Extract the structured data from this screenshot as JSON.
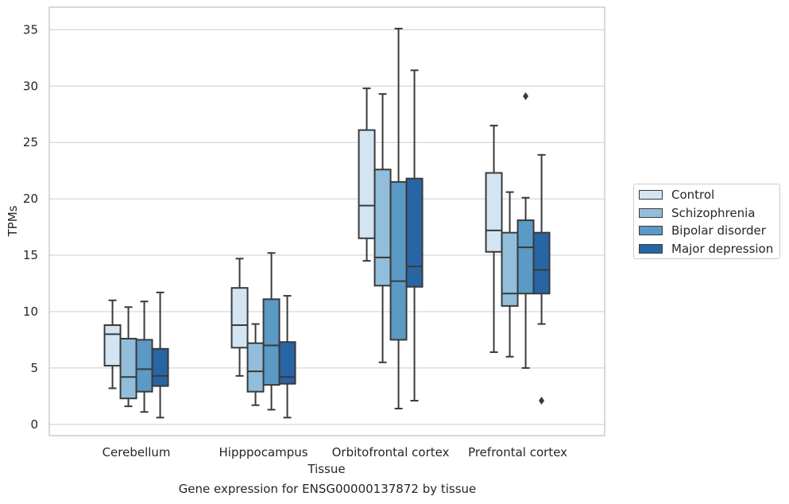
{
  "chart_data": {
    "type": "box",
    "title": "",
    "caption": "Gene expression for ENSG00000137872 by tissue",
    "xlabel": "Tissue",
    "ylabel": "TPMs",
    "ylim": [
      -1,
      37
    ],
    "yticks": [
      0,
      5,
      10,
      15,
      20,
      25,
      30,
      35
    ],
    "grid": "horizontal",
    "legend_position": "right",
    "categories": [
      "Cerebellum",
      "Hipppocampus",
      "Orbitofrontal cortex",
      "Prefrontal cortex"
    ],
    "series": [
      {
        "name": "Control",
        "color": "#d3e4f3",
        "boxes": [
          {
            "whislo": 3.2,
            "q1": 5.2,
            "med": 8.0,
            "q3": 8.8,
            "whishi": 11.0,
            "fliers": []
          },
          {
            "whislo": 4.3,
            "q1": 6.8,
            "med": 8.8,
            "q3": 12.1,
            "whishi": 14.7,
            "fliers": []
          },
          {
            "whislo": 14.5,
            "q1": 16.5,
            "med": 19.4,
            "q3": 26.1,
            "whishi": 29.8,
            "fliers": []
          },
          {
            "whislo": 6.4,
            "q1": 15.3,
            "med": 17.2,
            "q3": 22.3,
            "whishi": 26.5,
            "fliers": []
          }
        ]
      },
      {
        "name": "Schizophrenia",
        "color": "#92bedb",
        "boxes": [
          {
            "whislo": 1.6,
            "q1": 2.3,
            "med": 4.2,
            "q3": 7.6,
            "whishi": 10.4,
            "fliers": []
          },
          {
            "whislo": 1.7,
            "q1": 2.9,
            "med": 4.7,
            "q3": 7.2,
            "whishi": 8.9,
            "fliers": []
          },
          {
            "whislo": 5.5,
            "q1": 12.3,
            "med": 14.8,
            "q3": 22.6,
            "whishi": 29.3,
            "fliers": []
          },
          {
            "whislo": 6.0,
            "q1": 10.5,
            "med": 11.6,
            "q3": 17.0,
            "whishi": 20.6,
            "fliers": []
          }
        ]
      },
      {
        "name": "Bipolar disorder",
        "color": "#5a9ac5",
        "boxes": [
          {
            "whislo": 1.1,
            "q1": 2.9,
            "med": 4.9,
            "q3": 7.5,
            "whishi": 10.9,
            "fliers": []
          },
          {
            "whislo": 1.3,
            "q1": 3.5,
            "med": 7.0,
            "q3": 11.1,
            "whishi": 15.2,
            "fliers": []
          },
          {
            "whislo": 1.4,
            "q1": 7.5,
            "med": 12.7,
            "q3": 21.5,
            "whishi": 35.1,
            "fliers": []
          },
          {
            "whislo": 5.0,
            "q1": 11.6,
            "med": 15.7,
            "q3": 18.1,
            "whishi": 20.1,
            "fliers": [
              29.1
            ]
          }
        ]
      },
      {
        "name": "Major depression",
        "color": "#2865a5",
        "boxes": [
          {
            "whislo": 0.6,
            "q1": 3.4,
            "med": 4.3,
            "q3": 6.7,
            "whishi": 11.7,
            "fliers": []
          },
          {
            "whislo": 0.6,
            "q1": 3.6,
            "med": 4.2,
            "q3": 7.3,
            "whishi": 11.4,
            "fliers": []
          },
          {
            "whislo": 2.1,
            "q1": 12.2,
            "med": 14.0,
            "q3": 21.8,
            "whishi": 31.4,
            "fliers": []
          },
          {
            "whislo": 8.9,
            "q1": 11.6,
            "med": 13.7,
            "q3": 17.0,
            "whishi": 23.9,
            "fliers": [
              2.1
            ]
          }
        ]
      }
    ]
  }
}
